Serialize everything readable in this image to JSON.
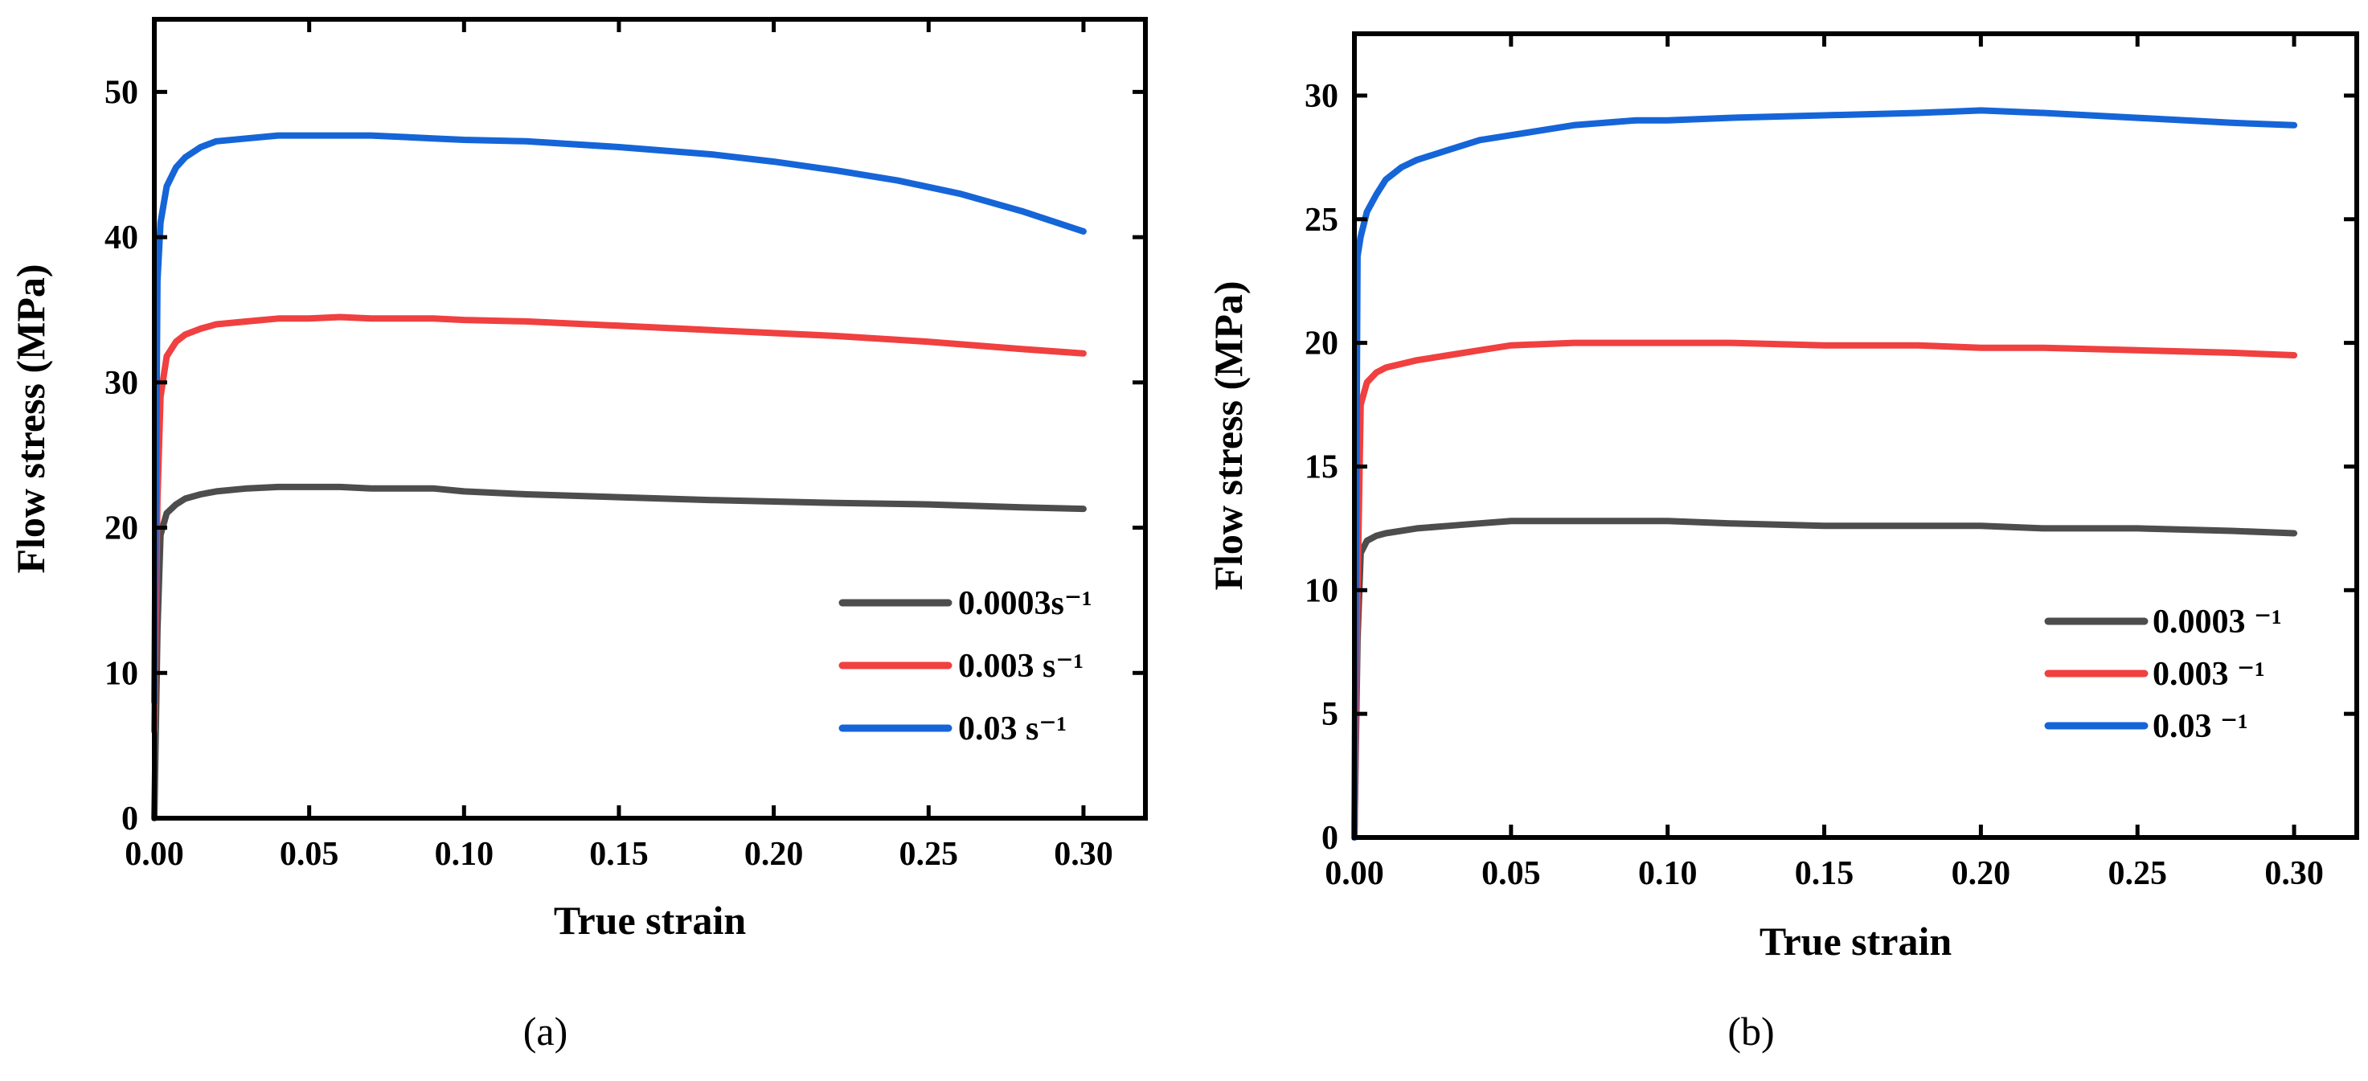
{
  "chart_data": [
    {
      "type": "line",
      "panel_label": "(a)",
      "xlabel": "True strain",
      "ylabel": "Flow stress (MPa)",
      "xlim": [
        0,
        0.32
      ],
      "ylim": [
        0,
        55
      ],
      "xticks": [
        0.0,
        0.05,
        0.1,
        0.15,
        0.2,
        0.25,
        0.3
      ],
      "xtick_labels": [
        "0.00",
        "0.05",
        "0.10",
        "0.15",
        "0.20",
        "0.25",
        "0.30"
      ],
      "yticks": [
        0,
        10,
        20,
        30,
        40,
        50
      ],
      "ytick_labels": [
        "0",
        "10",
        "20",
        "30",
        "40",
        "50"
      ],
      "grid": false,
      "legend_position": "lower-right",
      "series": [
        {
          "name": "0.0003s⁻¹",
          "color": "#4d4d4d",
          "x": [
            0,
            0.001,
            0.002,
            0.004,
            0.007,
            0.01,
            0.015,
            0.02,
            0.03,
            0.04,
            0.05,
            0.06,
            0.07,
            0.08,
            0.09,
            0.1,
            0.12,
            0.15,
            0.18,
            0.2,
            0.22,
            0.25,
            0.28,
            0.3
          ],
          "y": [
            0,
            13,
            19.5,
            21,
            21.6,
            22,
            22.3,
            22.5,
            22.7,
            22.8,
            22.8,
            22.8,
            22.7,
            22.7,
            22.7,
            22.5,
            22.3,
            22.1,
            21.9,
            21.8,
            21.7,
            21.6,
            21.4,
            21.3
          ]
        },
        {
          "name": "0.003 s⁻¹",
          "color": "#f04040",
          "x": [
            0,
            0.001,
            0.002,
            0.004,
            0.007,
            0.01,
            0.015,
            0.02,
            0.03,
            0.04,
            0.05,
            0.06,
            0.07,
            0.08,
            0.09,
            0.1,
            0.12,
            0.15,
            0.18,
            0.2,
            0.22,
            0.25,
            0.28,
            0.3
          ],
          "y": [
            6,
            22,
            29,
            31.8,
            32.8,
            33.3,
            33.7,
            34.0,
            34.2,
            34.4,
            34.4,
            34.5,
            34.4,
            34.4,
            34.4,
            34.3,
            34.2,
            33.9,
            33.6,
            33.4,
            33.2,
            32.8,
            32.3,
            32.0
          ]
        },
        {
          "name": "0.03 s⁻¹",
          "color": "#1565d8",
          "x": [
            0,
            0.001,
            0.002,
            0.004,
            0.007,
            0.01,
            0.015,
            0.02,
            0.03,
            0.04,
            0.05,
            0.06,
            0.07,
            0.08,
            0.09,
            0.1,
            0.12,
            0.15,
            0.18,
            0.2,
            0.22,
            0.24,
            0.26,
            0.28,
            0.3
          ],
          "y": [
            8,
            37,
            41,
            43.5,
            44.8,
            45.5,
            46.2,
            46.6,
            46.8,
            47.0,
            47.0,
            47.0,
            47.0,
            46.9,
            46.8,
            46.7,
            46.6,
            46.2,
            45.7,
            45.2,
            44.6,
            43.9,
            43.0,
            41.8,
            40.4
          ]
        }
      ]
    },
    {
      "type": "line",
      "panel_label": "(b)",
      "xlabel": "True strain",
      "ylabel": "Flow stress (MPa)",
      "xlim": [
        0,
        0.32
      ],
      "ylim": [
        0,
        32.5
      ],
      "xticks": [
        0.0,
        0.05,
        0.1,
        0.15,
        0.2,
        0.25,
        0.3
      ],
      "xtick_labels": [
        "0.00",
        "0.05",
        "0.10",
        "0.15",
        "0.20",
        "0.25",
        "0.30"
      ],
      "yticks": [
        0,
        5,
        10,
        15,
        20,
        25,
        30
      ],
      "ytick_labels": [
        "0",
        "5",
        "10",
        "15",
        "20",
        "25",
        "30"
      ],
      "grid": false,
      "legend_position": "lower-right",
      "series": [
        {
          "name": "0.0003 ⁻¹",
          "color": "#4d4d4d",
          "x": [
            0,
            0.001,
            0.002,
            0.004,
            0.007,
            0.01,
            0.02,
            0.03,
            0.04,
            0.05,
            0.07,
            0.09,
            0.1,
            0.12,
            0.15,
            0.18,
            0.2,
            0.22,
            0.25,
            0.28,
            0.3
          ],
          "y": [
            0,
            8,
            11.5,
            12.0,
            12.2,
            12.3,
            12.5,
            12.6,
            12.7,
            12.8,
            12.8,
            12.8,
            12.8,
            12.7,
            12.6,
            12.6,
            12.6,
            12.5,
            12.5,
            12.4,
            12.3
          ]
        },
        {
          "name": "0.003 ⁻¹",
          "color": "#f04040",
          "x": [
            0,
            0.001,
            0.002,
            0.004,
            0.007,
            0.01,
            0.02,
            0.03,
            0.04,
            0.05,
            0.07,
            0.09,
            0.1,
            0.12,
            0.15,
            0.18,
            0.2,
            0.22,
            0.25,
            0.28,
            0.3
          ],
          "y": [
            0,
            10,
            17.5,
            18.4,
            18.8,
            19.0,
            19.3,
            19.5,
            19.7,
            19.9,
            20.0,
            20.0,
            20.0,
            20.0,
            19.9,
            19.9,
            19.8,
            19.8,
            19.7,
            19.6,
            19.5
          ]
        },
        {
          "name": "0.03 ⁻¹",
          "color": "#1565d8",
          "x": [
            0,
            0.001,
            0.002,
            0.004,
            0.007,
            0.01,
            0.015,
            0.02,
            0.03,
            0.04,
            0.05,
            0.07,
            0.09,
            0.1,
            0.12,
            0.15,
            0.18,
            0.2,
            0.22,
            0.25,
            0.28,
            0.3
          ],
          "y": [
            0,
            23.5,
            24.3,
            25.3,
            26.0,
            26.6,
            27.1,
            27.4,
            27.8,
            28.2,
            28.4,
            28.8,
            29.0,
            29.0,
            29.1,
            29.2,
            29.3,
            29.4,
            29.3,
            29.1,
            28.9,
            28.8
          ]
        }
      ]
    }
  ]
}
